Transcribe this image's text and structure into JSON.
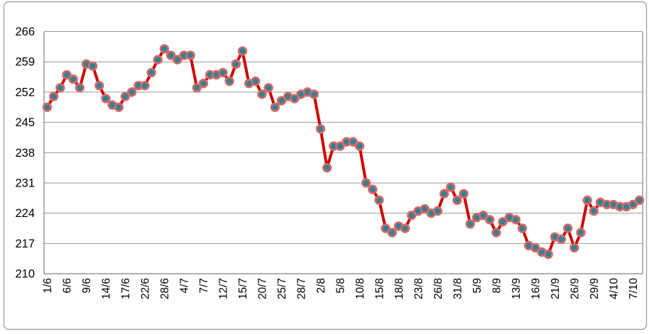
{
  "chart_data": {
    "type": "line",
    "title": "",
    "xlabel": "",
    "ylabel": "",
    "ylim": [
      210,
      266
    ],
    "y_ticks": [
      266,
      259,
      252,
      245,
      238,
      231,
      224,
      217,
      210
    ],
    "grid": true,
    "legend": "none",
    "x_label_interval": 3,
    "x_labels": [
      "1/6",
      "6/6",
      "9/6",
      "14/6",
      "17/6",
      "22/6",
      "28/6",
      "4/7",
      "7/7",
      "12/7",
      "15/7",
      "20/7",
      "25/7",
      "28/7",
      "2/8",
      "5/8",
      "10/8",
      "15/8",
      "18/8",
      "23/8",
      "26/8",
      "31/8",
      "5/9",
      "8/9",
      "13/9",
      "16/9",
      "21/9",
      "26/9",
      "29/9",
      "4/10",
      "7/10"
    ],
    "values": [
      248.5,
      251,
      253,
      256,
      255,
      253,
      258.5,
      258,
      253.5,
      250.5,
      249,
      248.5,
      251,
      252,
      253.5,
      253.5,
      256.5,
      259.5,
      262,
      260.5,
      259.5,
      260.5,
      260.5,
      253,
      254,
      256,
      256,
      256.5,
      254.5,
      258.5,
      261.5,
      254,
      254.5,
      251.5,
      253,
      248.5,
      250,
      251,
      250.5,
      251.5,
      252,
      251.5,
      243.5,
      234.5,
      239.5,
      239.5,
      240.5,
      240.5,
      239.5,
      231,
      229.5,
      227,
      220.5,
      219.5,
      221,
      220.5,
      223.5,
      224.5,
      225,
      224,
      224.5,
      228.5,
      230,
      227,
      228.5,
      221.5,
      223,
      223.5,
      222.5,
      219.5,
      222,
      223,
      222.5,
      220.5,
      216.5,
      216,
      215,
      214.5,
      218.5,
      218,
      220.5,
      216,
      219.5,
      227,
      224.5,
      226.5,
      226,
      226,
      225.5,
      225.5,
      226,
      227
    ],
    "colors": {
      "line": "#cf0000",
      "marker_fill": "#2a829b",
      "marker_border": "#d26a65",
      "gridline": "#969696",
      "axis": "#808080",
      "text": "#000000",
      "frame_border": "#a6a6a6",
      "background": "#ffffff"
    }
  }
}
